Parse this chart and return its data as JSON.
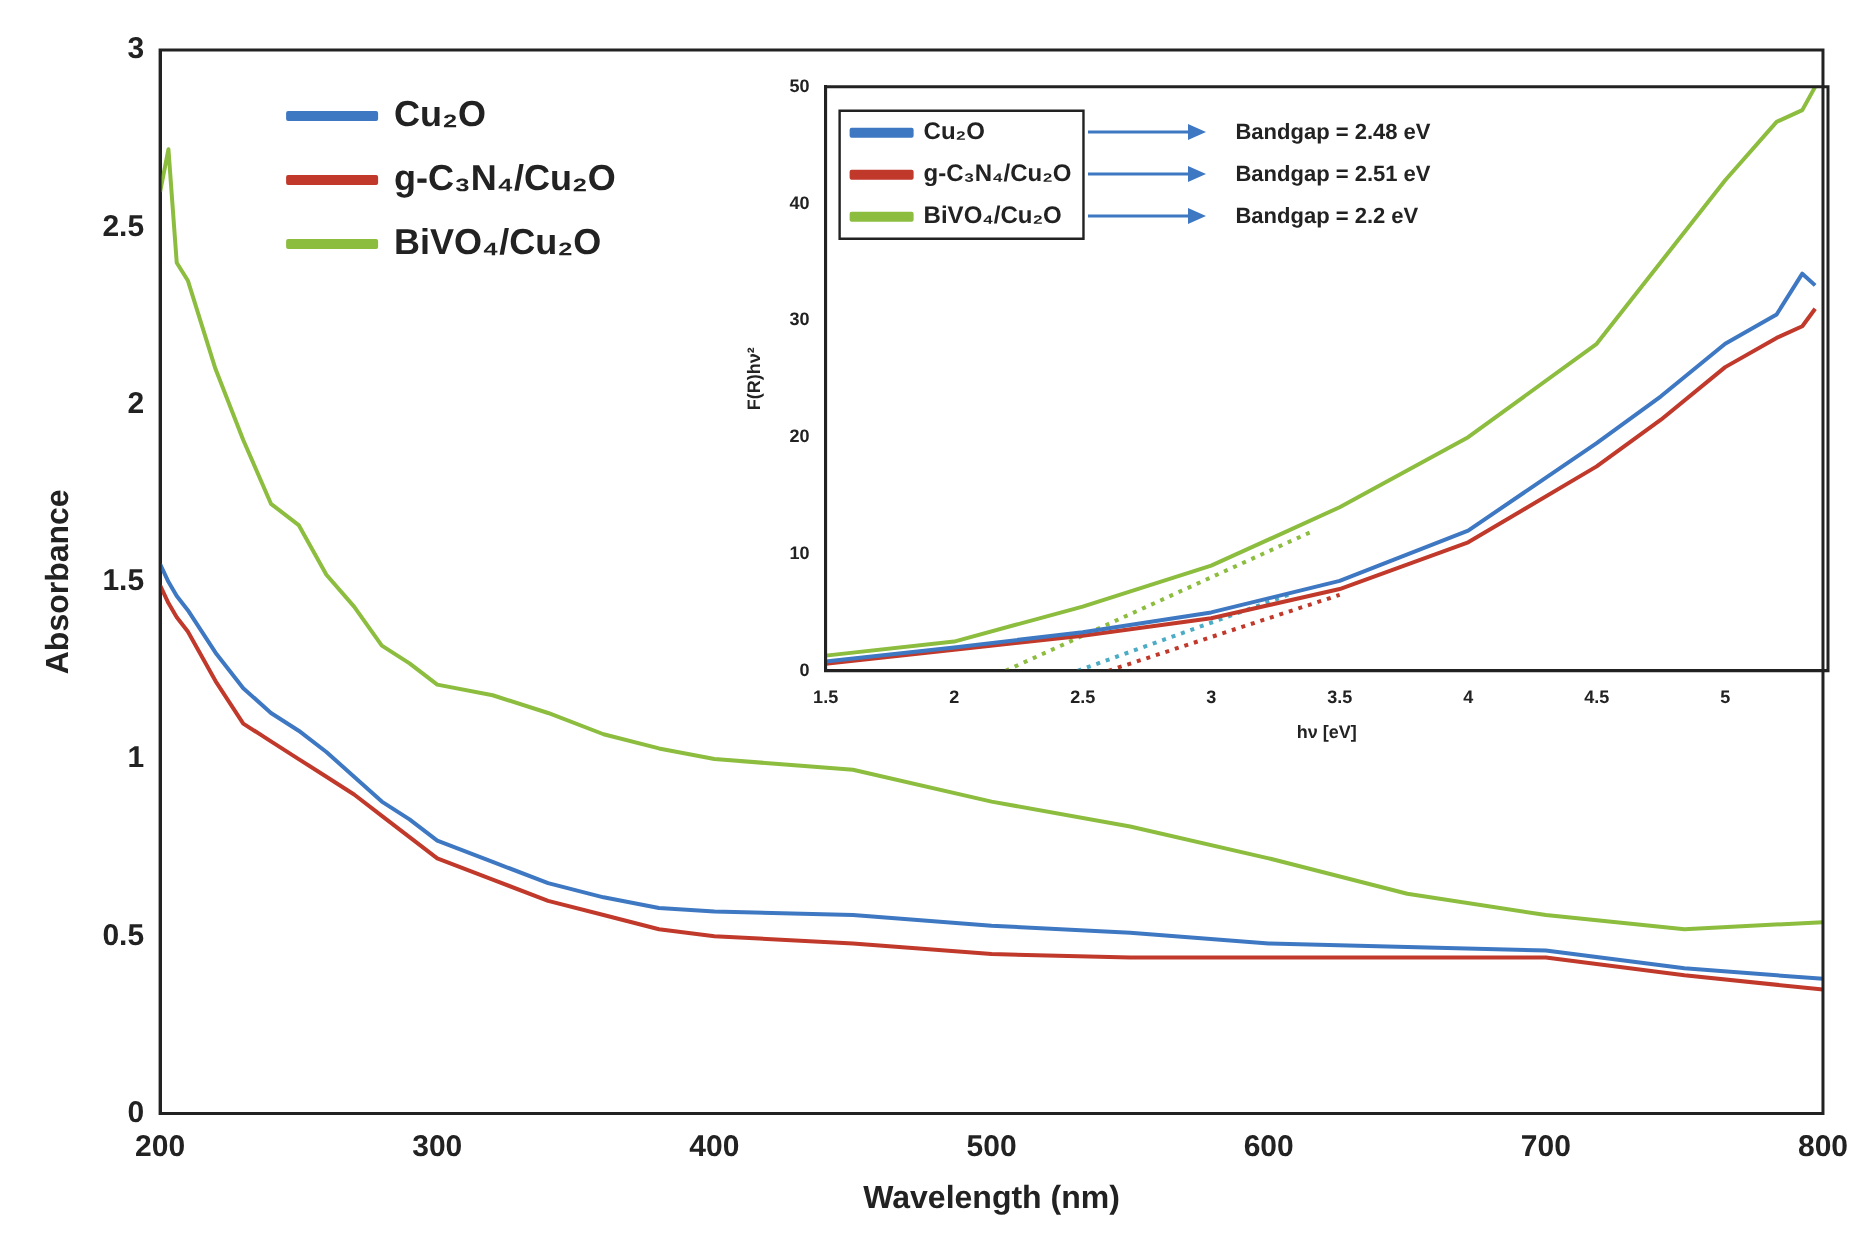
{
  "chart_data": [
    {
      "type": "line",
      "xlabel": "Wavelength (nm)",
      "ylabel": "Absorbance",
      "xlim": [
        200,
        800
      ],
      "xticks": [
        200,
        300,
        400,
        500,
        600,
        700,
        800
      ],
      "ylim": [
        0,
        3
      ],
      "yticks": [
        0,
        0.5,
        1,
        1.5,
        2,
        2.5,
        3
      ],
      "legend": "top left",
      "marker": "none",
      "x": [
        200,
        203,
        206,
        210,
        220,
        230,
        240,
        250,
        260,
        270,
        280,
        290,
        300,
        320,
        340,
        360,
        380,
        400,
        450,
        500,
        550,
        600,
        650,
        700,
        750,
        800
      ],
      "series": [
        {
          "name": "Cu₂O",
          "color": "#3e78c2",
          "values": [
            1.55,
            1.5,
            1.46,
            1.42,
            1.3,
            1.2,
            1.13,
            1.08,
            1.02,
            0.95,
            0.88,
            0.83,
            0.77,
            0.71,
            0.65,
            0.61,
            0.58,
            0.57,
            0.56,
            0.53,
            0.51,
            0.48,
            0.47,
            0.46,
            0.41,
            0.38
          ]
        },
        {
          "name": "g-C₃N₄/Cu₂O",
          "color": "#c0392b",
          "values": [
            1.49,
            1.44,
            1.4,
            1.36,
            1.22,
            1.1,
            1.05,
            1.0,
            0.95,
            0.9,
            0.84,
            0.78,
            0.72,
            0.66,
            0.6,
            0.56,
            0.52,
            0.5,
            0.48,
            0.45,
            0.44,
            0.44,
            0.44,
            0.44,
            0.39,
            0.35
          ]
        },
        {
          "name": "BiVO₄/Cu₂O",
          "color": "#8cbd3f",
          "values": [
            2.6,
            2.72,
            2.4,
            2.35,
            2.1,
            1.9,
            1.72,
            1.66,
            1.52,
            1.43,
            1.32,
            1.27,
            1.21,
            1.18,
            1.13,
            1.07,
            1.03,
            1.0,
            0.97,
            0.88,
            0.81,
            0.72,
            0.62,
            0.56,
            0.52,
            0.54
          ]
        }
      ]
    },
    {
      "type": "line",
      "xlabel": "hν [eV]",
      "ylabel": "F(R)hν²",
      "xlim": [
        1.5,
        5.4
      ],
      "xticks": [
        1.5,
        2,
        2.5,
        3,
        3.5,
        4,
        4.5,
        5
      ],
      "ylim": [
        0,
        50
      ],
      "yticks": [
        0,
        10,
        20,
        30,
        40,
        50
      ],
      "legend": "top left",
      "marker": "none",
      "annotations": [
        "Bandgap = 2.48 eV",
        "Bandgap = 2.51 eV",
        "Bandgap = 2.2 eV"
      ],
      "x": [
        1.5,
        2,
        2.5,
        3,
        3.5,
        4,
        4.5,
        4.75,
        5,
        5.2,
        5.3,
        5.35
      ],
      "series": [
        {
          "name": "Cu₂O",
          "color": "#3e78c2",
          "values": [
            0.8,
            2,
            3.3,
            5,
            7.7,
            12,
            19.5,
            23.5,
            28,
            30.5,
            34,
            33
          ]
        },
        {
          "name": "g-C₃N₄/Cu₂O",
          "color": "#c0392b",
          "values": [
            0.6,
            1.8,
            3,
            4.5,
            7,
            11,
            17.5,
            21.5,
            26,
            28.5,
            29.5,
            31
          ]
        },
        {
          "name": "BiVO₄/Cu₂O",
          "color": "#8cbd3f",
          "values": [
            1.3,
            2.5,
            5.5,
            9,
            14,
            20,
            28,
            35,
            42,
            47,
            48,
            50
          ]
        },
        {
          "type": "line",
          "line_style": "dotted",
          "color": "#4bacc6",
          "x": [
            2.48,
            3.3
          ],
          "values": [
            0,
            6.5
          ]
        },
        {
          "type": "line",
          "line_style": "dotted",
          "color": "#c0392b",
          "x": [
            2.6,
            3.5
          ],
          "values": [
            0,
            6.5
          ]
        },
        {
          "type": "line",
          "line_style": "dotted",
          "color": "#8cbd3f",
          "x": [
            2.2,
            3.4
          ],
          "values": [
            0,
            12
          ]
        }
      ]
    }
  ]
}
